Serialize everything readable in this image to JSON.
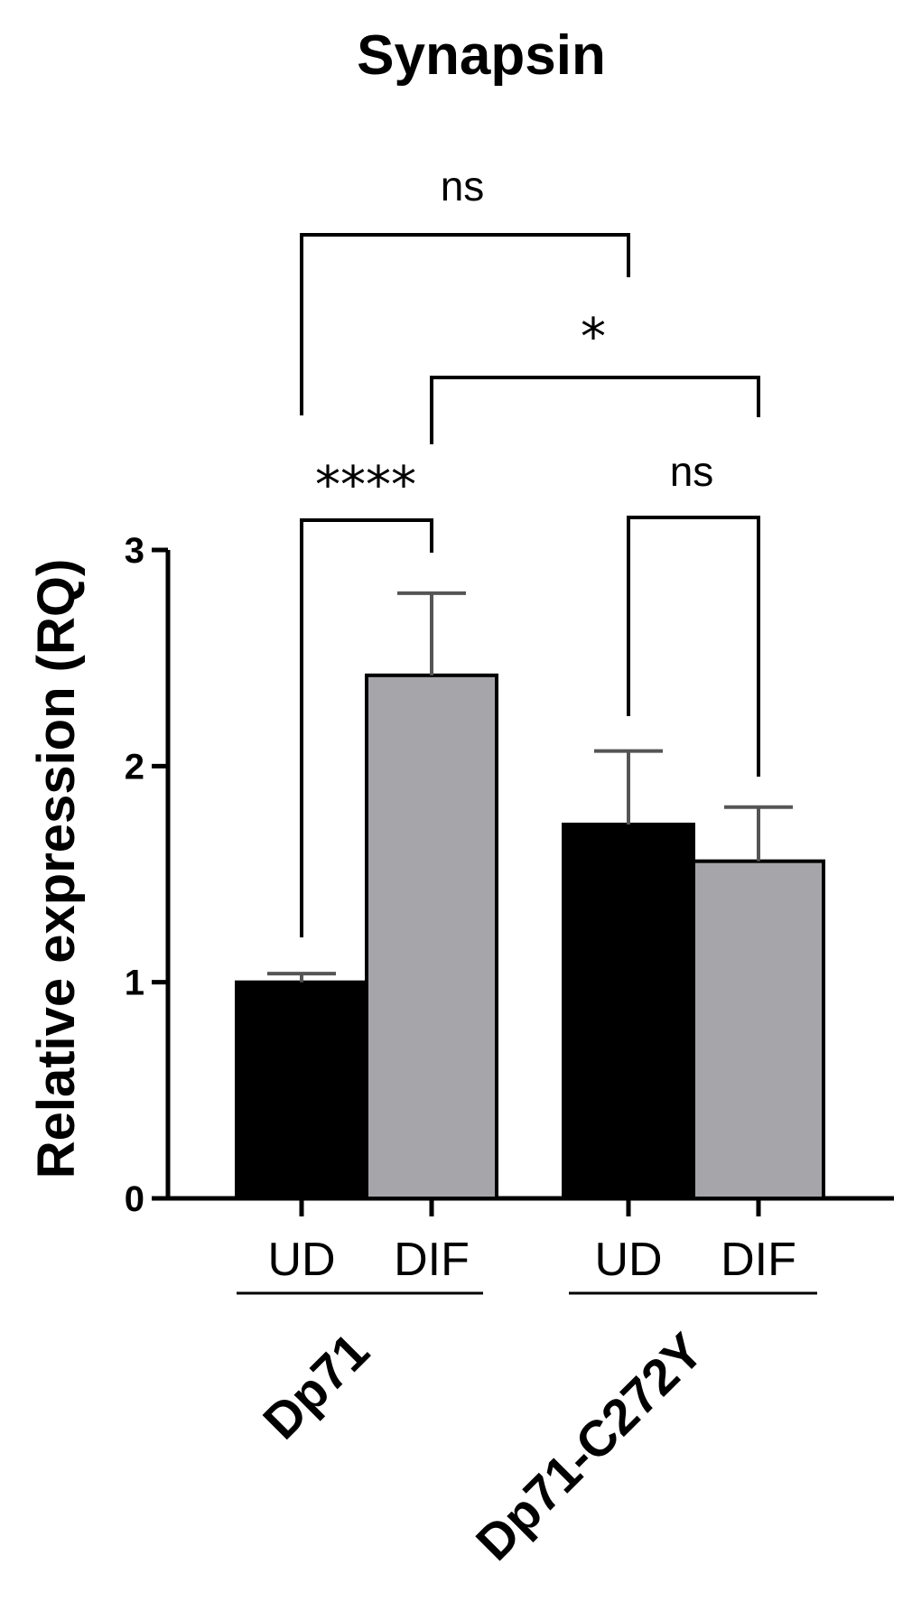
{
  "chart_data": {
    "type": "bar",
    "title": "Synapsin",
    "ylabel": "Relative expression (RQ)",
    "xlabel": "",
    "ylim": [
      0,
      3
    ],
    "yticks": [
      "0",
      "1",
      "2",
      "3"
    ],
    "groups": [
      "Dp71",
      "Dp71-C272Y"
    ],
    "categories": [
      "UD",
      "DIF",
      "UD",
      "DIF"
    ],
    "values": [
      1.0,
      2.42,
      1.73,
      1.56
    ],
    "errors": [
      0.04,
      0.38,
      0.34,
      0.25
    ],
    "colors": [
      "#000000",
      "#a6a6aa",
      "#000000",
      "#a6a6aa"
    ],
    "comparisons": [
      {
        "a": 0,
        "b": 1,
        "label": "****"
      },
      {
        "a": 2,
        "b": 3,
        "label": "ns"
      },
      {
        "a": 1,
        "b": 3,
        "label": "*"
      },
      {
        "a": 0,
        "b": 2,
        "label": "ns"
      }
    ]
  }
}
